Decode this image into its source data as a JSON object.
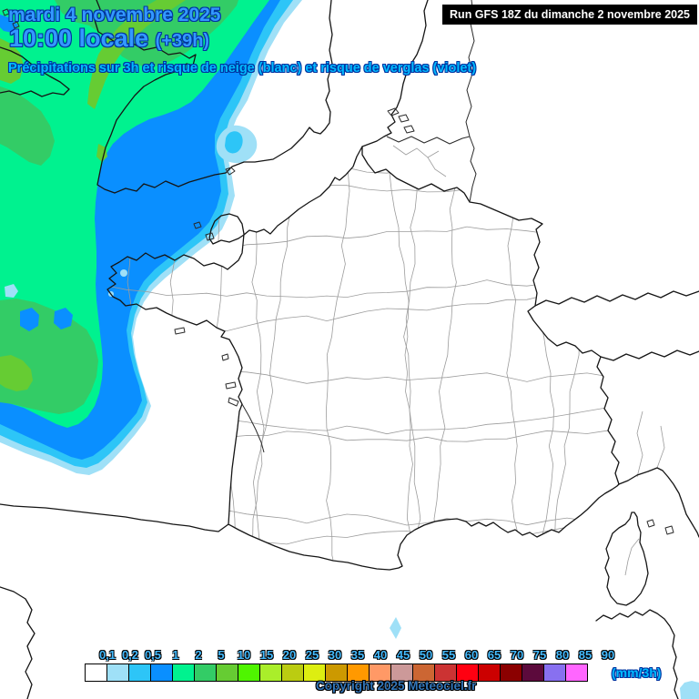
{
  "header": {
    "date_line": "mardi 4 novembre 2025",
    "time_line": "10:00 locale",
    "offset_label": "(+39h)",
    "subtitle": "Précipitations sur 3h et risque de neige (blanc) et risque de verglas (violet)",
    "run_info": "Run GFS 18Z du dimanche 2 novembre 2025"
  },
  "legend": {
    "unit_label": "(mm/3h)",
    "scale": [
      {
        "label": "0,1",
        "color": "#FFFFFF"
      },
      {
        "label": "0,2",
        "color": "#9FE0F7"
      },
      {
        "label": "0,5",
        "color": "#2DC5F7"
      },
      {
        "label": "1",
        "color": "#0A8FFF"
      },
      {
        "label": "2",
        "color": "#00F28F"
      },
      {
        "label": "5",
        "color": "#33CC66"
      },
      {
        "label": "10",
        "color": "#66CC33"
      },
      {
        "label": "15",
        "color": "#4FF500"
      },
      {
        "label": "20",
        "color": "#AAEE2A"
      },
      {
        "label": "25",
        "color": "#BBCC11"
      },
      {
        "label": "30",
        "color": "#DDEE11"
      },
      {
        "label": "35",
        "color": "#CC9900"
      },
      {
        "label": "40",
        "color": "#FF9900"
      },
      {
        "label": "45",
        "color": "#FF9966"
      },
      {
        "label": "50",
        "color": "#CC9999"
      },
      {
        "label": "55",
        "color": "#CC6633"
      },
      {
        "label": "60",
        "color": "#CC3333"
      },
      {
        "label": "65",
        "color": "#FF0011"
      },
      {
        "label": "70",
        "color": "#CC0000"
      },
      {
        "label": "75",
        "color": "#8B0000"
      },
      {
        "label": "80",
        "color": "#5C0A3C"
      },
      {
        "label": "85",
        "color": "#8870F0"
      },
      {
        "label": "90",
        "color": "#FF66FF"
      }
    ]
  },
  "footer": {
    "copyright": "Copyright 2025 Meteociel.fr"
  },
  "colors": {
    "title_fill": "#3399FF",
    "outline_navy": "#0033A0",
    "subtitle_fill": "#00BBFF",
    "label_fill": "#44BBFF",
    "copyright_fill": "#3377BB",
    "run_bg": "#000000",
    "run_fg": "#FFFFFF"
  }
}
